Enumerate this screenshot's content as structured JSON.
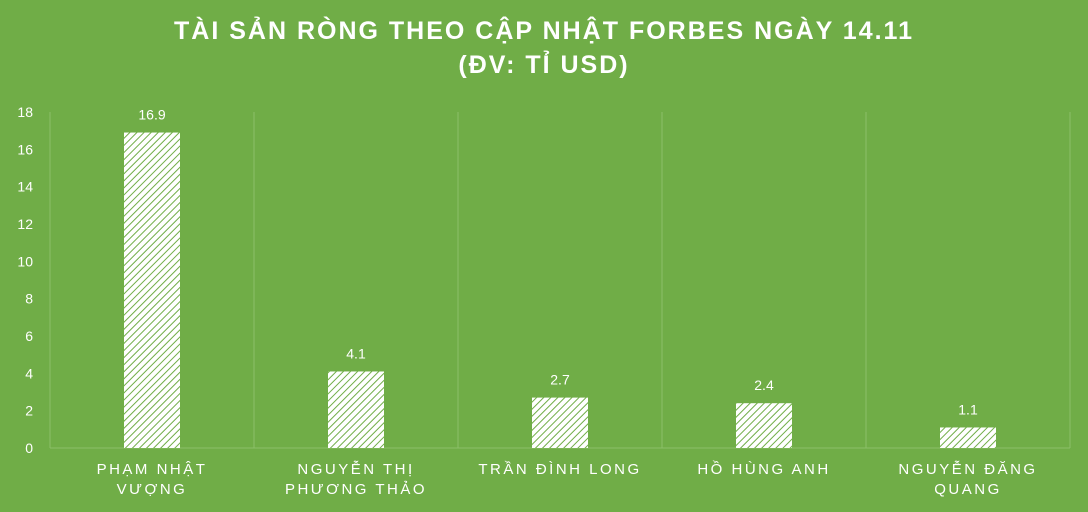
{
  "chart_data": {
    "type": "bar",
    "title": "TÀI SẢN RÒNG THEO CẬP NHẬT FORBES NGÀY 14.11",
    "subtitle": "(ĐV: TỈ USD)",
    "categories": [
      [
        "PHẠM NHẬT",
        "VƯỢNG"
      ],
      [
        "NGUYỄN THỊ",
        "PHƯƠNG THẢO"
      ],
      [
        "TRẦN ĐÌNH LONG"
      ],
      [
        "HỒ HÙNG ANH"
      ],
      [
        "NGUYỄN ĐĂNG",
        "QUANG"
      ]
    ],
    "values": [
      16.9,
      4.1,
      2.7,
      2.4,
      1.1
    ],
    "data_labels": [
      "16.9",
      "4.1",
      "2.7",
      "2.4",
      "1.1"
    ],
    "ylim": [
      0,
      18
    ],
    "yticks": [
      0,
      2,
      4,
      6,
      8,
      10,
      12,
      14,
      16,
      18
    ],
    "grid": "vertical-category-separators",
    "legend": "none",
    "colors": {
      "background": "#70ad47",
      "bar_fill": "#ffffff",
      "bar_hatch": "#70ad47",
      "text": "#ffffff",
      "grid": "#8cc06a"
    }
  }
}
